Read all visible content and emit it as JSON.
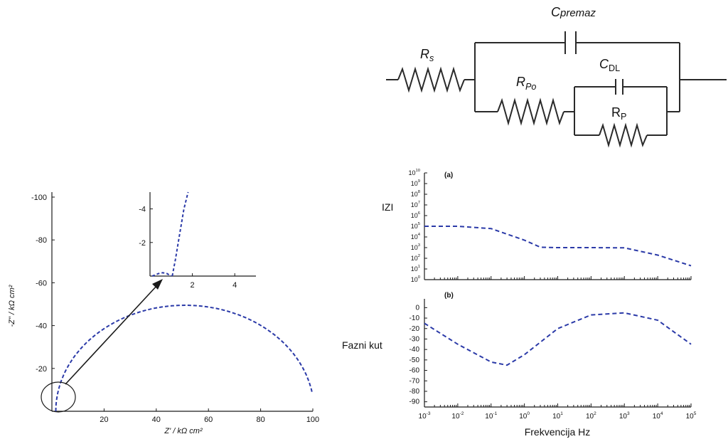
{
  "colors": {
    "curve": "#2b3aa8",
    "axis": "#1a1a1a",
    "circuit": "#2a2a2a"
  },
  "circuit": {
    "labels": {
      "rs": [
        "R",
        "s"
      ],
      "cpremaz": [
        "C",
        "premaz"
      ],
      "rpo": [
        "R",
        "Po"
      ],
      "cdl": [
        "C",
        "DL"
      ],
      "rp": [
        "R",
        "P"
      ]
    }
  },
  "chart_data": [
    {
      "id": "nyquist",
      "type": "line",
      "xlabel": "Z' / kΩ cm²",
      "ylabel": "-Z\" / kΩ cm²",
      "xlim": [
        0,
        100
      ],
      "ylim": [
        0,
        -100
      ],
      "xticks": [
        "20",
        "40",
        "60",
        "80",
        "100"
      ],
      "yticks": [
        "-20",
        "-40",
        "-60",
        "-80",
        "-100"
      ],
      "series": [
        {
          "shape": "semicircle",
          "center_x": 51,
          "radius": 49.5,
          "x": [
            1.5,
            6,
            15,
            25,
            40,
            51,
            65,
            80,
            92,
            100
          ],
          "y": [
            0,
            -15,
            -29,
            -39,
            -47,
            -49.5,
            -48,
            -40,
            -27,
            -10
          ]
        }
      ]
    },
    {
      "id": "nyquist-inset",
      "type": "line",
      "xlim": [
        0,
        5
      ],
      "ylim": [
        0,
        -5
      ],
      "xticks": [
        "2",
        "4"
      ],
      "yticks": [
        "-2",
        "-4"
      ],
      "series": [
        {
          "x": [
            0.1,
            0.4,
            0.6,
            0.8,
            1.0
          ],
          "y": [
            0,
            -0.15,
            -0.2,
            -0.15,
            0
          ]
        },
        {
          "x": [
            1.05,
            1.2,
            1.4,
            1.6,
            1.8
          ],
          "y": [
            0,
            -1,
            -2.5,
            -4,
            -5
          ]
        }
      ]
    },
    {
      "id": "bode-magnitude",
      "type": "line",
      "panel_label": "(a)",
      "ylabel": "IZI",
      "xscale": "log",
      "yscale": "log",
      "xlim": [
        0.001,
        100000
      ],
      "ylim": [
        1,
        10000000000
      ],
      "yticks": [
        {
          "base": "10",
          "exp": "10"
        },
        {
          "base": "10",
          "exp": "9"
        },
        {
          "base": "10",
          "exp": "8"
        },
        {
          "base": "10",
          "exp": "7"
        },
        {
          "base": "10",
          "exp": "6"
        },
        {
          "base": "10",
          "exp": "5"
        },
        {
          "base": "10",
          "exp": "4"
        },
        {
          "base": "10",
          "exp": "3"
        },
        {
          "base": "10",
          "exp": "2"
        },
        {
          "base": "10",
          "exp": "1"
        },
        {
          "base": "10",
          "exp": "0"
        }
      ],
      "series": [
        {
          "x": [
            0.001,
            0.01,
            0.1,
            1,
            3,
            10,
            100,
            1000,
            10000,
            100000
          ],
          "y": [
            100000,
            100000,
            60000,
            5000,
            1100,
            1000,
            1000,
            950,
            200,
            20
          ]
        }
      ]
    },
    {
      "id": "bode-phase",
      "type": "line",
      "panel_label": "(b)",
      "ylabel": "Fazni kut",
      "xlabel": "Frekvencija Hz",
      "xscale": "log",
      "xlim": [
        0.001,
        100000
      ],
      "ylim": [
        -95,
        5
      ],
      "yticks": [
        "0",
        "-10",
        "-20",
        "-30",
        "-40",
        "-50",
        "-60",
        "-70",
        "-80",
        "-90"
      ],
      "xticks": [
        {
          "base": "10",
          "exp": "-3"
        },
        {
          "base": "10",
          "exp": "-2"
        },
        {
          "base": "10",
          "exp": "-1"
        },
        {
          "base": "10",
          "exp": "0"
        },
        {
          "base": "10",
          "exp": "1"
        },
        {
          "base": "10",
          "exp": "2"
        },
        {
          "base": "10",
          "exp": "3"
        },
        {
          "base": "10",
          "exp": "4"
        },
        {
          "base": "10",
          "exp": "5"
        }
      ],
      "series": [
        {
          "x": [
            0.001,
            0.01,
            0.1,
            0.3,
            1,
            10,
            100,
            1000,
            10000,
            100000
          ],
          "y": [
            -15,
            -35,
            -52,
            -55,
            -45,
            -20,
            -7,
            -5,
            -12,
            -35
          ]
        }
      ]
    }
  ]
}
